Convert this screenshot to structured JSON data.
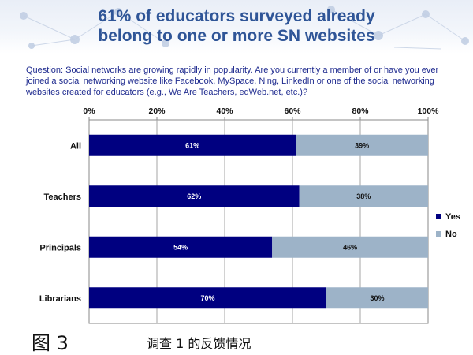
{
  "title": {
    "line1": "61% of educators surveyed already",
    "line2": "belong to one or more SN websites"
  },
  "question": "Question: Social networks are growing rapidly in popularity.  Are you currently a member of or have you ever joined a social networking website like Facebook, MySpace, Ning, LinkedIn or one of the social networking websites created for educators (e.g., We Are Teachers, edWeb.net, etc.)?",
  "figure": {
    "label": "图 3",
    "caption": "调查 1 的反馈情况"
  },
  "colors": {
    "yes": "#000080",
    "no": "#9db3c8",
    "title": "#2f5597",
    "question": "#1f2b8f"
  },
  "chart_data": {
    "type": "bar",
    "orientation": "horizontal",
    "stacked": true,
    "categories": [
      "All",
      "Teachers",
      "Principals",
      "Librarians"
    ],
    "series": [
      {
        "name": "Yes",
        "values": [
          61,
          62,
          54,
          70
        ],
        "labels": [
          "61%",
          "62%",
          "54%",
          "70%"
        ]
      },
      {
        "name": "No",
        "values": [
          39,
          38,
          46,
          30
        ],
        "labels": [
          "39%",
          "38%",
          "46%",
          "30%"
        ]
      }
    ],
    "xlim": [
      0,
      100
    ],
    "xticks": [
      "0%",
      "20%",
      "40%",
      "60%",
      "80%",
      "100%"
    ],
    "xaxis_position": "top",
    "grid": true,
    "legend": "right"
  }
}
